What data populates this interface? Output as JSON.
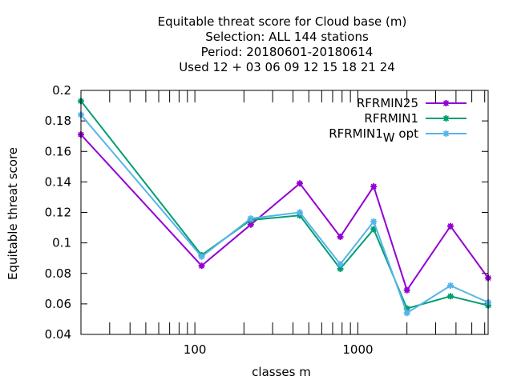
{
  "chart_data": {
    "type": "line",
    "title_lines": [
      "Equitable threat score  for Cloud base (m)",
      "Selection: ALL    144 stations",
      "Period: 20180601-20180614",
      "Used  12 + 03 06 09 12 15 18 21 24"
    ],
    "xlabel": "classes m",
    "ylabel": "Equitable threat score",
    "xscale": "log",
    "xlim": [
      20,
      6300
    ],
    "ylim": [
      0.04,
      0.2
    ],
    "x": [
      20,
      110,
      220,
      440,
      780,
      1250,
      2000,
      3700,
      6300
    ],
    "xticks": [
      {
        "value": 100,
        "label": "100"
      },
      {
        "value": 1000,
        "label": "1000"
      }
    ],
    "yticks": [
      {
        "value": 0.04,
        "label": "0.04"
      },
      {
        "value": 0.06,
        "label": "0.06"
      },
      {
        "value": 0.08,
        "label": "0.08"
      },
      {
        "value": 0.1,
        "label": "0.1"
      },
      {
        "value": 0.12,
        "label": "0.12"
      },
      {
        "value": 0.14,
        "label": "0.14"
      },
      {
        "value": 0.16,
        "label": "0.16"
      },
      {
        "value": 0.18,
        "label": "0.18"
      },
      {
        "value": 0.2,
        "label": "0.2"
      }
    ],
    "legend_position": "top-right",
    "series": [
      {
        "name": "RFRMIN25",
        "color": "#9400d3",
        "values": [
          0.171,
          0.085,
          0.112,
          0.139,
          0.104,
          0.137,
          0.069,
          0.111,
          0.077
        ]
      },
      {
        "name": "RFRMIN1",
        "color": "#009e73",
        "values": [
          0.193,
          0.092,
          0.115,
          0.118,
          0.083,
          0.109,
          0.057,
          0.065,
          0.059
        ]
      },
      {
        "name": "RFRMIN1",
        "name_subscript": "W",
        "name_suffix": " opt",
        "color": "#56b4e9",
        "values": [
          0.184,
          0.091,
          0.116,
          0.12,
          0.086,
          0.114,
          0.054,
          0.072,
          0.061
        ]
      }
    ]
  }
}
